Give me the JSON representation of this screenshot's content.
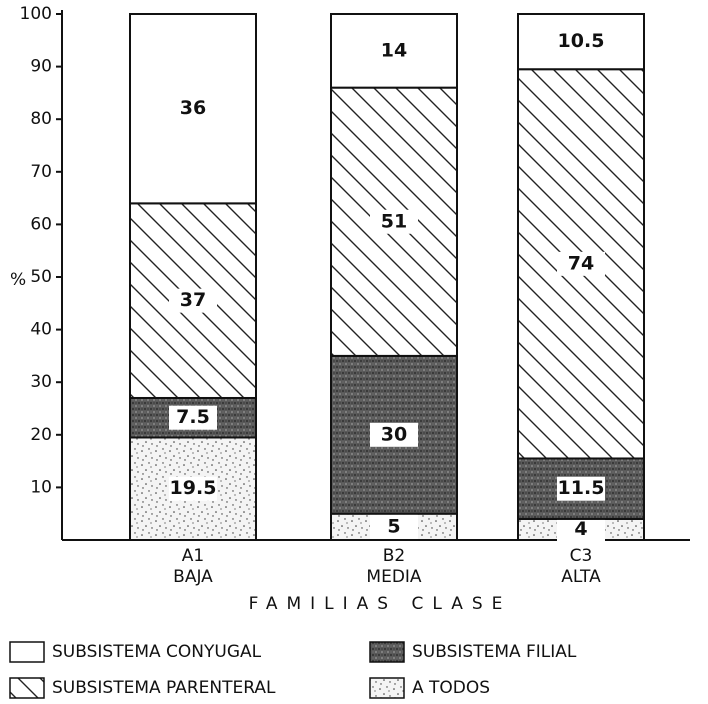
{
  "chart_data": {
    "type": "stacked_bar",
    "categories": [
      "A1",
      "B2",
      "C3"
    ],
    "category_sublabels": [
      "BAJA",
      "MEDIA",
      "ALTA"
    ],
    "xlabel": "FAMILIAS CLASE",
    "ylabel": "%",
    "ylim": [
      0,
      100
    ],
    "yticks": [
      10,
      20,
      30,
      40,
      50,
      60,
      70,
      80,
      90,
      100
    ],
    "series": [
      {
        "name": "A TODOS",
        "color": "#f4f4f4",
        "values": [
          19.5,
          5,
          4
        ]
      },
      {
        "name": "SUBSISTEMA FILIAL",
        "color": "#5a5a5a",
        "values": [
          7.5,
          30,
          11.5
        ]
      },
      {
        "name": "SUBSISTEMA PARENTERAL",
        "color": "#ffffff",
        "values": [
          37,
          51,
          74
        ]
      },
      {
        "name": "SUBSISTEMA CONYUGAL",
        "color": "#ffffff",
        "values": [
          36,
          14,
          10.5
        ]
      }
    ]
  }
}
